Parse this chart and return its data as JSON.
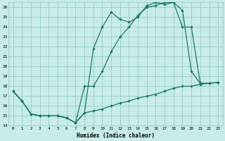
{
  "xlabel": "Humidex (Indice chaleur)",
  "bg_color": "#c8ece8",
  "grid_color": "#8cc8c0",
  "line_color": "#1a7a6a",
  "xlim": [
    -0.5,
    23.5
  ],
  "ylim": [
    14,
    26.5
  ],
  "xticks": [
    0,
    1,
    2,
    3,
    4,
    5,
    6,
    7,
    8,
    9,
    10,
    11,
    12,
    13,
    14,
    15,
    16,
    17,
    18,
    19,
    20,
    21,
    22,
    23
  ],
  "yticks": [
    14,
    15,
    16,
    17,
    18,
    19,
    20,
    21,
    22,
    23,
    24,
    25,
    26
  ],
  "series1_x": [
    0,
    1,
    2,
    3,
    4,
    5,
    6,
    7,
    8,
    9,
    10,
    11,
    12,
    13,
    14,
    15,
    16,
    17,
    18,
    19,
    20,
    21,
    22,
    23
  ],
  "series1_y": [
    17.5,
    16.5,
    15.2,
    15.0,
    15.0,
    15.0,
    14.8,
    14.3,
    15.3,
    15.5,
    15.7,
    16.0,
    16.3,
    16.5,
    16.8,
    17.0,
    17.2,
    17.5,
    17.8,
    18.0,
    18.0,
    18.2,
    18.3,
    18.4
  ],
  "series2_x": [
    0,
    1,
    2,
    3,
    4,
    5,
    6,
    7,
    8,
    9,
    10,
    11,
    12,
    13,
    14,
    15,
    16,
    17,
    18,
    19,
    20,
    21,
    22,
    23
  ],
  "series2_y": [
    17.5,
    16.5,
    15.2,
    15.0,
    15.0,
    15.0,
    14.8,
    14.3,
    15.3,
    21.8,
    24.0,
    25.5,
    24.8,
    24.5,
    25.0,
    26.2,
    26.5,
    26.3,
    26.5,
    25.7,
    19.5,
    18.3,
    18.3,
    18.4
  ],
  "series3_x": [
    0,
    1,
    2,
    3,
    4,
    5,
    6,
    7,
    8,
    9,
    10,
    11,
    12,
    13,
    14,
    15,
    16,
    17,
    18,
    19,
    20,
    21,
    22,
    23
  ],
  "series3_y": [
    17.5,
    16.5,
    15.2,
    15.0,
    15.0,
    15.0,
    14.8,
    14.3,
    18.0,
    18.0,
    19.5,
    21.5,
    23.0,
    24.0,
    25.2,
    26.0,
    26.2,
    26.5,
    26.5,
    24.0,
    24.0,
    18.3,
    18.3,
    18.4
  ]
}
